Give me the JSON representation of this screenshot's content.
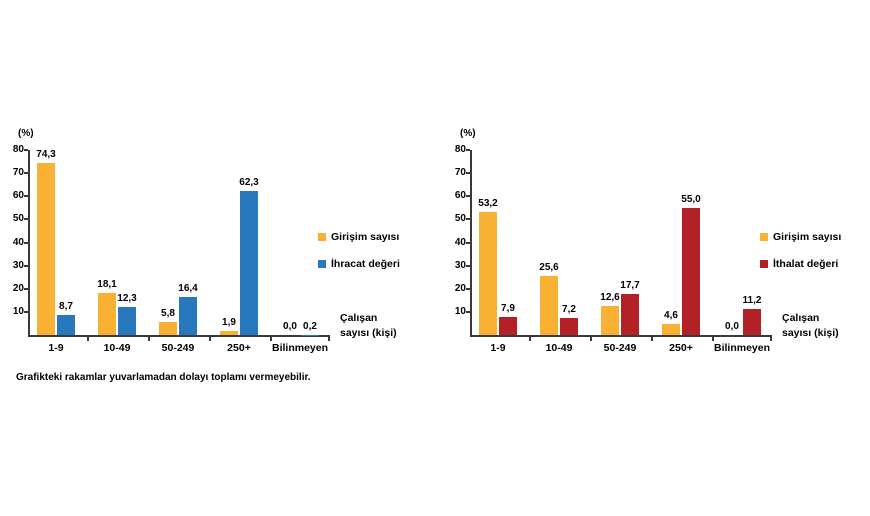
{
  "page": {
    "footnote": "Grafikteki rakamlar yuvarlamadan dolayı toplamı vermeyebilir."
  },
  "colors": {
    "enterprise_yellow": "#F8B133",
    "export_blue": "#2878BE",
    "import_red": "#B22125",
    "axis": "#3a3a3a",
    "text": "#000000",
    "background": "#ffffff"
  },
  "chart_data": [
    {
      "type": "bar",
      "title": "",
      "categories": [
        "1-9",
        "10-49",
        "50-249",
        "250+",
        "Bilinmeyen"
      ],
      "series": [
        {
          "name": "Girişim sayısı",
          "color": "#F8B133",
          "values": [
            74.3,
            18.1,
            5.8,
            1.9,
            0.0
          ]
        },
        {
          "name": "İhracat değeri",
          "color": "#2878BE",
          "values": [
            8.7,
            12.3,
            16.4,
            62.3,
            0.2
          ]
        }
      ],
      "ylabel": "(%)",
      "xlabel": "Çalışan sayısı (kişi)",
      "ylim": [
        0,
        80
      ],
      "yticks": [
        10,
        20,
        30,
        40,
        50,
        60,
        70,
        80
      ],
      "grid": false,
      "legend_position": "right",
      "value_label_decimal_separator": ","
    },
    {
      "type": "bar",
      "title": "",
      "categories": [
        "1-9",
        "10-49",
        "50-249",
        "250+",
        "Bilinmeyen"
      ],
      "series": [
        {
          "name": "Girişim sayısı",
          "color": "#F8B133",
          "values": [
            53.2,
            25.6,
            12.6,
            4.6,
            0.0
          ]
        },
        {
          "name": "İthalat değeri",
          "color": "#B22125",
          "values": [
            7.9,
            7.2,
            17.7,
            55.0,
            11.2
          ]
        }
      ],
      "ylabel": "(%)",
      "xlabel": "Çalışan sayısı (kişi)",
      "ylim": [
        0,
        80
      ],
      "yticks": [
        10,
        20,
        30,
        40,
        50,
        60,
        70,
        80
      ],
      "grid": false,
      "legend_position": "right",
      "value_label_decimal_separator": ","
    }
  ]
}
